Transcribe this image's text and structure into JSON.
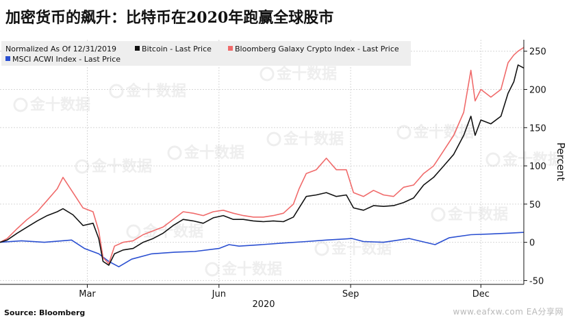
{
  "title": "加密货币的飙升：比特币在2020年跑赢全球股市",
  "source": "Source: Bloomberg",
  "credit": "www.eafxw.com  EA分享网",
  "watermark": "金十数据",
  "chart_data": {
    "type": "line",
    "legend_header": "Normalized As Of 12/31/2019",
    "ylabel": "Percent",
    "xlabel": "2020",
    "ylim": [
      -55,
      265
    ],
    "yticks": [
      -50,
      0,
      50,
      100,
      150,
      200,
      250
    ],
    "x_ticks": [
      {
        "label": "Mar",
        "date": "2020-03-01"
      },
      {
        "label": "Jun",
        "date": "2020-06-01"
      },
      {
        "label": "Sep",
        "date": "2020-09-01"
      },
      {
        "label": "Dec",
        "date": "2020-12-01"
      }
    ],
    "x_range": [
      "2019-12-31",
      "2020-12-31"
    ],
    "grid": true,
    "legend_position": "top-left",
    "series": [
      {
        "name": "Bitcoin - Last Price",
        "color": "#111111",
        "points": [
          [
            "2019-12-31",
            0
          ],
          [
            "2020-01-05",
            3
          ],
          [
            "2020-01-12",
            12
          ],
          [
            "2020-01-19",
            20
          ],
          [
            "2020-01-26",
            28
          ],
          [
            "2020-02-02",
            35
          ],
          [
            "2020-02-09",
            40
          ],
          [
            "2020-02-13",
            44
          ],
          [
            "2020-02-20",
            36
          ],
          [
            "2020-02-27",
            22
          ],
          [
            "2020-03-05",
            25
          ],
          [
            "2020-03-09",
            5
          ],
          [
            "2020-03-12",
            -25
          ],
          [
            "2020-03-16",
            -30
          ],
          [
            "2020-03-20",
            -15
          ],
          [
            "2020-03-26",
            -10
          ],
          [
            "2020-04-02",
            -8
          ],
          [
            "2020-04-09",
            0
          ],
          [
            "2020-04-16",
            5
          ],
          [
            "2020-04-23",
            12
          ],
          [
            "2020-04-30",
            22
          ],
          [
            "2020-05-07",
            30
          ],
          [
            "2020-05-14",
            28
          ],
          [
            "2020-05-21",
            25
          ],
          [
            "2020-05-28",
            32
          ],
          [
            "2020-06-04",
            35
          ],
          [
            "2020-06-11",
            30
          ],
          [
            "2020-06-18",
            30
          ],
          [
            "2020-06-25",
            28
          ],
          [
            "2020-07-02",
            27
          ],
          [
            "2020-07-09",
            28
          ],
          [
            "2020-07-16",
            27
          ],
          [
            "2020-07-23",
            33
          ],
          [
            "2020-07-27",
            45
          ],
          [
            "2020-08-01",
            60
          ],
          [
            "2020-08-08",
            62
          ],
          [
            "2020-08-15",
            65
          ],
          [
            "2020-08-22",
            60
          ],
          [
            "2020-08-29",
            62
          ],
          [
            "2020-09-03",
            45
          ],
          [
            "2020-09-10",
            42
          ],
          [
            "2020-09-17",
            48
          ],
          [
            "2020-09-24",
            47
          ],
          [
            "2020-10-01",
            48
          ],
          [
            "2020-10-08",
            52
          ],
          [
            "2020-10-15",
            58
          ],
          [
            "2020-10-22",
            75
          ],
          [
            "2020-10-29",
            85
          ],
          [
            "2020-11-05",
            100
          ],
          [
            "2020-11-12",
            115
          ],
          [
            "2020-11-19",
            140
          ],
          [
            "2020-11-24",
            165
          ],
          [
            "2020-11-27",
            140
          ],
          [
            "2020-12-01",
            160
          ],
          [
            "2020-12-08",
            155
          ],
          [
            "2020-12-15",
            165
          ],
          [
            "2020-12-20",
            195
          ],
          [
            "2020-12-24",
            210
          ],
          [
            "2020-12-27",
            232
          ],
          [
            "2020-12-31",
            228
          ]
        ]
      },
      {
        "name": "Bloomberg Galaxy Crypto Index - Last Price",
        "color": "#f06a6a",
        "points": [
          [
            "2019-12-31",
            0
          ],
          [
            "2020-01-05",
            5
          ],
          [
            "2020-01-12",
            18
          ],
          [
            "2020-01-19",
            30
          ],
          [
            "2020-01-26",
            40
          ],
          [
            "2020-02-02",
            55
          ],
          [
            "2020-02-09",
            70
          ],
          [
            "2020-02-13",
            85
          ],
          [
            "2020-02-20",
            65
          ],
          [
            "2020-02-27",
            45
          ],
          [
            "2020-03-05",
            40
          ],
          [
            "2020-03-09",
            15
          ],
          [
            "2020-03-12",
            -20
          ],
          [
            "2020-03-16",
            -28
          ],
          [
            "2020-03-20",
            -5
          ],
          [
            "2020-03-26",
            0
          ],
          [
            "2020-04-02",
            2
          ],
          [
            "2020-04-09",
            10
          ],
          [
            "2020-04-16",
            15
          ],
          [
            "2020-04-23",
            20
          ],
          [
            "2020-04-30",
            30
          ],
          [
            "2020-05-07",
            40
          ],
          [
            "2020-05-14",
            38
          ],
          [
            "2020-05-21",
            35
          ],
          [
            "2020-05-28",
            40
          ],
          [
            "2020-06-04",
            42
          ],
          [
            "2020-06-11",
            38
          ],
          [
            "2020-06-18",
            35
          ],
          [
            "2020-06-25",
            33
          ],
          [
            "2020-07-02",
            33
          ],
          [
            "2020-07-09",
            35
          ],
          [
            "2020-07-16",
            38
          ],
          [
            "2020-07-23",
            50
          ],
          [
            "2020-07-27",
            70
          ],
          [
            "2020-08-01",
            90
          ],
          [
            "2020-08-08",
            95
          ],
          [
            "2020-08-15",
            110
          ],
          [
            "2020-08-22",
            95
          ],
          [
            "2020-08-29",
            95
          ],
          [
            "2020-09-03",
            65
          ],
          [
            "2020-09-10",
            60
          ],
          [
            "2020-09-17",
            68
          ],
          [
            "2020-09-24",
            62
          ],
          [
            "2020-10-01",
            60
          ],
          [
            "2020-10-08",
            72
          ],
          [
            "2020-10-15",
            75
          ],
          [
            "2020-10-22",
            90
          ],
          [
            "2020-10-29",
            100
          ],
          [
            "2020-11-05",
            120
          ],
          [
            "2020-11-12",
            140
          ],
          [
            "2020-11-19",
            170
          ],
          [
            "2020-11-24",
            225
          ],
          [
            "2020-11-27",
            185
          ],
          [
            "2020-12-01",
            200
          ],
          [
            "2020-12-08",
            190
          ],
          [
            "2020-12-15",
            200
          ],
          [
            "2020-12-20",
            235
          ],
          [
            "2020-12-24",
            245
          ],
          [
            "2020-12-27",
            250
          ],
          [
            "2020-12-31",
            255
          ]
        ]
      },
      {
        "name": "MSCI ACWI Index - Last Price",
        "color": "#2a4fd1",
        "points": [
          [
            "2019-12-31",
            0
          ],
          [
            "2020-01-15",
            2
          ],
          [
            "2020-01-31",
            0
          ],
          [
            "2020-02-19",
            3
          ],
          [
            "2020-02-28",
            -8
          ],
          [
            "2020-03-09",
            -15
          ],
          [
            "2020-03-16",
            -25
          ],
          [
            "2020-03-23",
            -32
          ],
          [
            "2020-04-01",
            -22
          ],
          [
            "2020-04-15",
            -15
          ],
          [
            "2020-05-01",
            -13
          ],
          [
            "2020-05-15",
            -12
          ],
          [
            "2020-06-01",
            -8
          ],
          [
            "2020-06-08",
            -3
          ],
          [
            "2020-06-15",
            -5
          ],
          [
            "2020-07-01",
            -3
          ],
          [
            "2020-07-15",
            -1
          ],
          [
            "2020-08-01",
            1
          ],
          [
            "2020-08-15",
            3
          ],
          [
            "2020-09-02",
            5
          ],
          [
            "2020-09-10",
            1
          ],
          [
            "2020-09-24",
            0
          ],
          [
            "2020-10-12",
            5
          ],
          [
            "2020-10-30",
            -3
          ],
          [
            "2020-11-09",
            6
          ],
          [
            "2020-11-24",
            10
          ],
          [
            "2020-12-08",
            11
          ],
          [
            "2020-12-20",
            12
          ],
          [
            "2020-12-31",
            13
          ]
        ]
      }
    ]
  }
}
